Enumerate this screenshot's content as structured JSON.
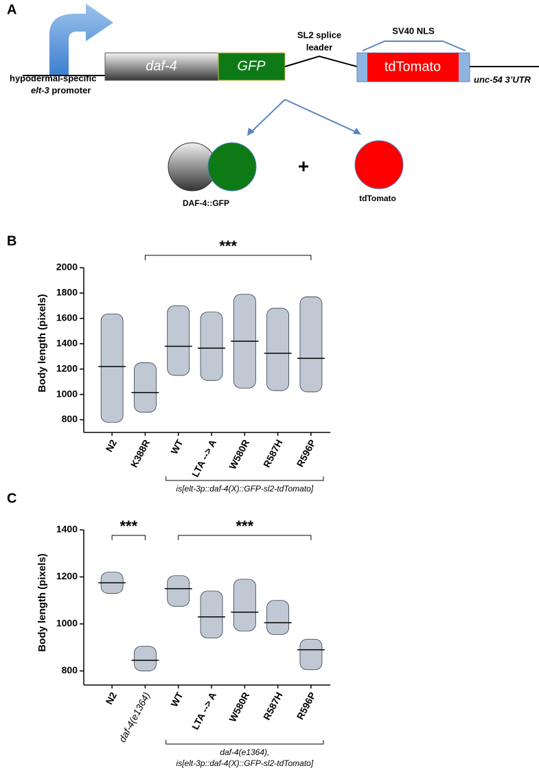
{
  "diagram": {
    "panel": "A",
    "promoter": [
      "hypodermal-specific",
      "elt-3",
      " promoter"
    ],
    "gene": "daf-4",
    "tag": "GFP",
    "splice": [
      "SL2 splice",
      "leader"
    ],
    "nls": "SV40 NLS",
    "reporter": "tdTomato",
    "utr": "unc-54 3’UTR",
    "product_1": "DAF-4::GFP",
    "plus": "+",
    "product_2": "tdTomato"
  },
  "chart_data": [
    {
      "type": "beeswarm",
      "panel": "B",
      "y_label": "Body length (pixels)",
      "categories": [
        "N2",
        "K388R",
        "WT",
        "LTA --> A",
        "W580R",
        "R587H",
        "R596P"
      ],
      "values": [
        1220,
        1015,
        1380,
        1365,
        1420,
        1325,
        1285
      ],
      "min": [
        780,
        860,
        1150,
        1110,
        1050,
        1030,
        1020
      ],
      "max": [
        1635,
        1250,
        1700,
        1650,
        1790,
        1680,
        1770
      ],
      "color": "#8c9bb0",
      "ylim": [
        700,
        2000
      ],
      "yticks": [
        800,
        1000,
        1200,
        1400,
        1600,
        1800,
        2000
      ],
      "annotations": [
        "***"
      ],
      "group_label": [
        "is[elt-3p::daf-4(X)::GFP-sl2-tdTomato]"
      ]
    },
    {
      "type": "beeswarm",
      "panel": "C",
      "y_label": "Body length (pixels)",
      "categories": [
        "N2",
        "daf-4(e1364)",
        "WT",
        "LTA --> A",
        "W580R",
        "R587H",
        "R596P"
      ],
      "values": [
        1175,
        845,
        1150,
        1030,
        1050,
        1005,
        890
      ],
      "min": [
        1130,
        800,
        1075,
        940,
        970,
        955,
        805
      ],
      "max": [
        1220,
        905,
        1205,
        1140,
        1190,
        1100,
        935
      ],
      "color": "#8c9bb0",
      "ylim": [
        740,
        1400
      ],
      "yticks": [
        800,
        1000,
        1200,
        1400
      ],
      "annotations": [
        "***",
        "***"
      ],
      "group_label": [
        "daf-4(e1364),",
        "is[elt-3p::daf-4(X)::GFP-sl2-tdTomato]"
      ]
    }
  ]
}
